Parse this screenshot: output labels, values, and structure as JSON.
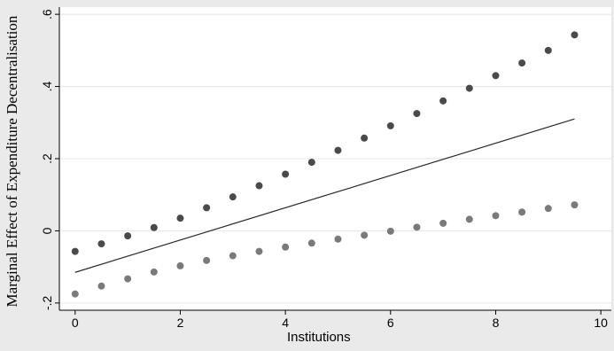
{
  "chart_data": {
    "type": "line",
    "title": "",
    "xlabel": "Institutions",
    "ylabel": "Marginal Effect of Expenditure Decentralisation",
    "xlim": [
      -0.3,
      10.2
    ],
    "ylim": [
      -0.22,
      0.62
    ],
    "xticks": [
      0,
      2,
      4,
      6,
      8,
      10
    ],
    "xtick_labels": [
      "0",
      "2",
      "4",
      "6",
      "8",
      "10"
    ],
    "yticks": [
      -0.2,
      0,
      0.2,
      0.4,
      0.6
    ],
    "ytick_labels": [
      "-.2",
      "0",
      ".2",
      ".4",
      ".6"
    ],
    "grid": true,
    "series": [
      {
        "style": "solid",
        "color": "#2a2a2a",
        "x": [
          0,
          9.5
        ],
        "y": [
          -0.115,
          0.31
        ]
      },
      {
        "style": "dotted",
        "color": "#4a4a4a",
        "x": [
          0,
          0.5,
          1,
          1.5,
          2,
          2.5,
          3,
          3.5,
          4,
          4.5,
          5,
          5.5,
          6,
          6.5,
          7,
          7.5,
          8,
          8.5,
          9,
          9.5
        ],
        "y": [
          -0.057,
          -0.036,
          -0.014,
          0.009,
          0.035,
          0.064,
          0.094,
          0.125,
          0.157,
          0.19,
          0.223,
          0.257,
          0.291,
          0.325,
          0.36,
          0.395,
          0.43,
          0.465,
          0.5,
          0.543
        ]
      },
      {
        "style": "dotted",
        "color": "#7a7a7a",
        "x": [
          0,
          0.5,
          1,
          1.5,
          2,
          2.5,
          3,
          3.5,
          4,
          4.5,
          5,
          5.5,
          6,
          6.5,
          7,
          7.5,
          8,
          8.5,
          9,
          9.5
        ],
        "y": [
          -0.175,
          -0.153,
          -0.133,
          -0.114,
          -0.097,
          -0.082,
          -0.069,
          -0.057,
          -0.045,
          -0.034,
          -0.023,
          -0.012,
          -0.001,
          0.01,
          0.021,
          0.032,
          0.042,
          0.052,
          0.062,
          0.072
        ]
      }
    ]
  }
}
